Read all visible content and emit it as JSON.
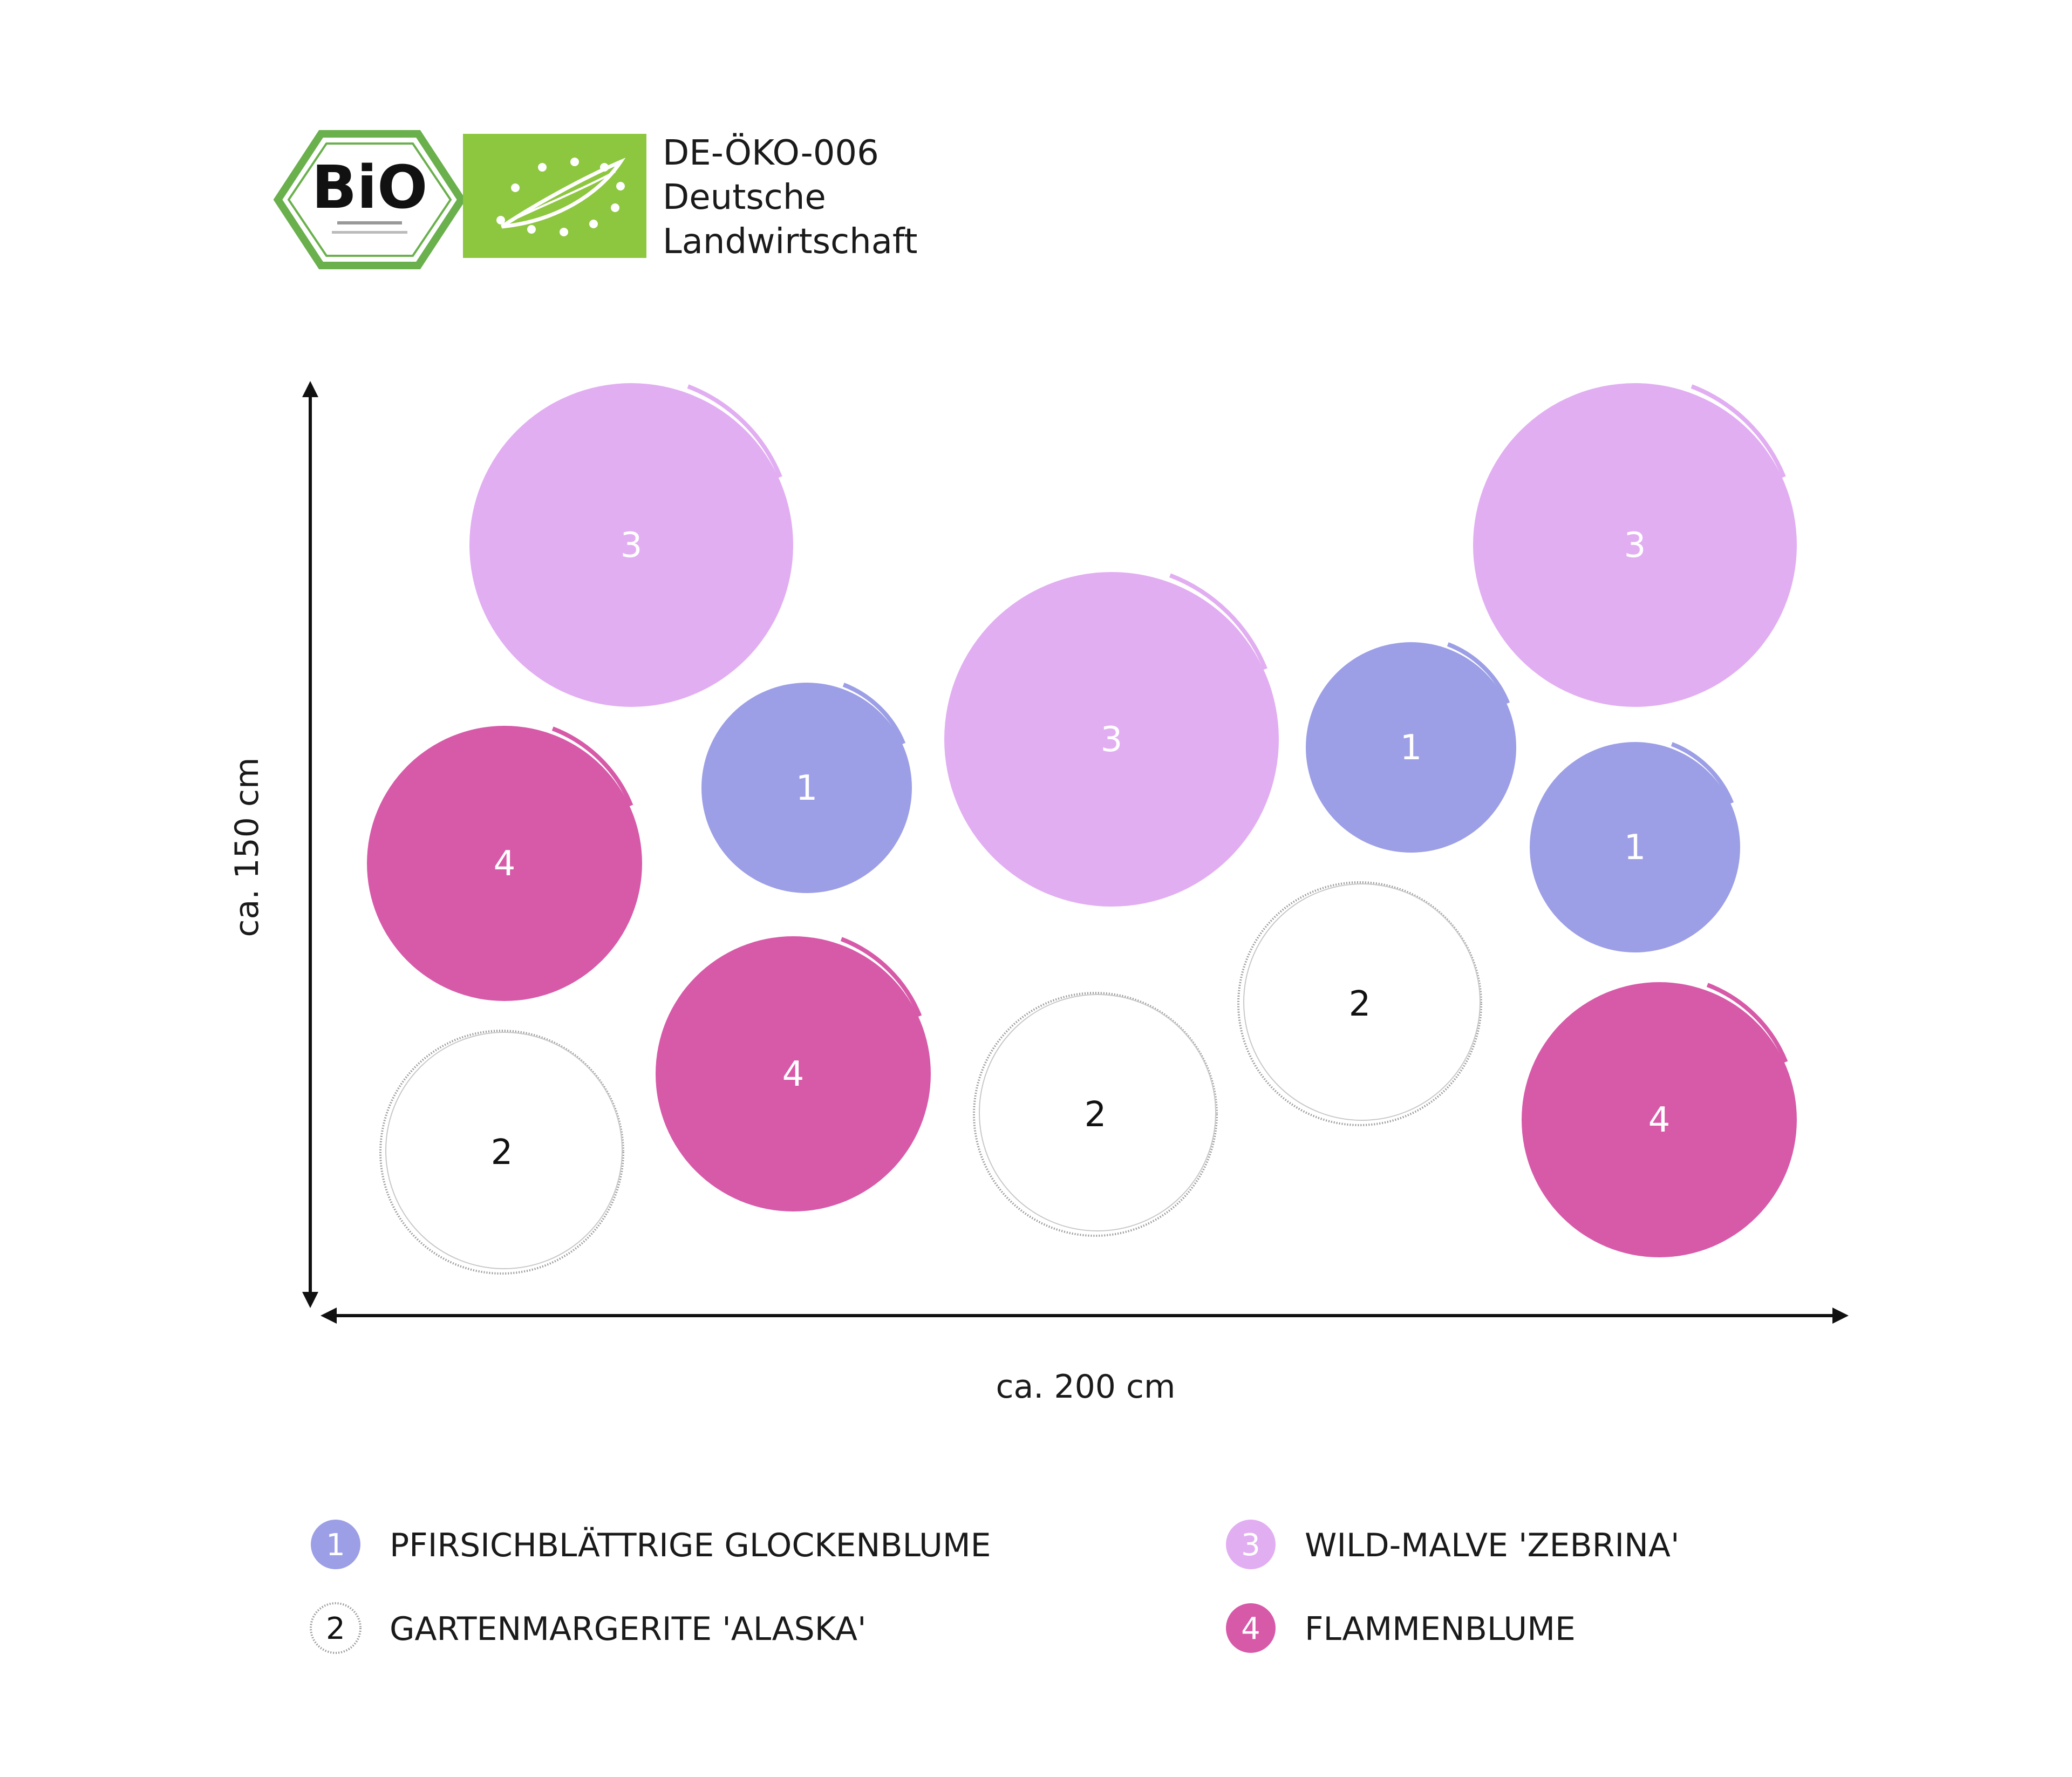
{
  "certification": {
    "bio_logo_text": "BiO",
    "lines": [
      "DE-ÖKO-006",
      "Deutsche",
      "Landwirtschaft"
    ]
  },
  "dimensions": {
    "height_label": "ca. 150 cm",
    "width_label": "ca. 200 cm"
  },
  "plants": [
    {
      "id": "1",
      "name": "PFIRSICHBLÄTTRIGE GLOCKENBLUME",
      "color": "#9c9fe6"
    },
    {
      "id": "2",
      "name": "GARTENMARGERITE 'ALASKA'",
      "color": "#ffffff"
    },
    {
      "id": "3",
      "name": "WILD-MALVE 'ZEBRINA'",
      "color": "#e2aef2"
    },
    {
      "id": "4",
      "name": "FLAMMENBLUME",
      "color": "#d75aa9"
    }
  ],
  "layout": {
    "circles": [
      {
        "plant": "3"
      },
      {
        "plant": "3"
      },
      {
        "plant": "3"
      },
      {
        "plant": "1"
      },
      {
        "plant": "1"
      },
      {
        "plant": "1"
      },
      {
        "plant": "4"
      },
      {
        "plant": "4"
      },
      {
        "plant": "4"
      },
      {
        "plant": "2"
      },
      {
        "plant": "2"
      },
      {
        "plant": "2"
      }
    ]
  },
  "colors": {
    "eu_leaf_green": "#8dc63f",
    "bio_hex_green": "#6ab04c",
    "outline_gray": "#9a9a9a",
    "text_dark": "#1a1a1a"
  }
}
